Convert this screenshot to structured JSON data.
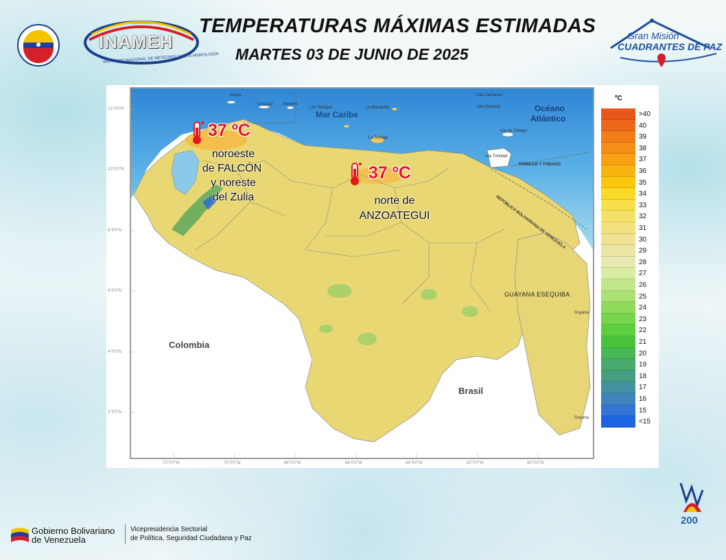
{
  "header": {
    "title": "TEMPERATURAS MÁXIMAS ESTIMADAS",
    "subtitle": "MARTES 03 DE JUNIO DE 2025"
  },
  "logos": {
    "inameh": "INAMEH",
    "inameh_sub": "INSTITUTO NACIONAL DE METEOROLOGÍA E HIDROLOGÍA",
    "gran_mision": "Gran Misión",
    "cuadrantes": "CUADRANTES DE PAZ",
    "bicentenario": "200"
  },
  "map": {
    "places": {
      "aruba": "Aruba",
      "curazao": "Curazao",
      "bonaire": "Bonaire",
      "los_testigos": "Los Testigos",
      "la_blanquilla": "La Blanquilla",
      "la_tortuga": "La Tortuga",
      "carriacou": "Isla Carriacou",
      "granada": "Isla Granada",
      "tobago": "Isla de Tobago",
      "trinidad": "Isla Trinidad",
      "mar_caribe": "Mar Caribe",
      "oceano": "Océano",
      "atlantico": "Atlántico",
      "trinidad_tobago": "TRINIDAD Y TOBAGO",
      "rep_bolivariana": "REPÚBLICA BOLIVARIANA DE VENEZUELA",
      "colombia": "Colombia",
      "brasil": "Brasil",
      "guayana_esequiba": "GUAYANA ESEQUIBA",
      "guyana": "Guyana",
      "guyana2": "Guyana"
    },
    "lat_labels": [
      "12°0'0\"N",
      "10°0'0\"N",
      "8°0'0\"N",
      "6°0'0\"N",
      "4°0'0\"N",
      "2°0'0\"N"
    ],
    "lon_labels": [
      "72°0'0\"W",
      "70°0'0\"W",
      "68°0'0\"W",
      "66°0'0\"W",
      "64°0'0\"W",
      "62°0'0\"W",
      "60°0'0\"W"
    ]
  },
  "annotations": [
    {
      "temp": "37 ºC",
      "line1": "noroeste",
      "line2": "de FALCÓN",
      "line3": "y noreste",
      "line4": "del Zulia"
    },
    {
      "temp": "37 ºC",
      "line1": "norte de",
      "line2": "ANZOATEGUI"
    }
  ],
  "legend": {
    "unit": "ºC",
    "entries": [
      {
        "label": ">40",
        "color": "#e8571c"
      },
      {
        "label": "40",
        "color": "#ee6a1a"
      },
      {
        "label": "39",
        "color": "#f27c18"
      },
      {
        "label": "38",
        "color": "#f58e16"
      },
      {
        "label": "37",
        "color": "#f7a013"
      },
      {
        "label": "36",
        "color": "#f8b510"
      },
      {
        "label": "35",
        "color": "#fac80c"
      },
      {
        "label": "34",
        "color": "#fad928"
      },
      {
        "label": "33",
        "color": "#f9e04a"
      },
      {
        "label": "32",
        "color": "#f6e168"
      },
      {
        "label": "31",
        "color": "#f3e27f"
      },
      {
        "label": "30",
        "color": "#efe393"
      },
      {
        "label": "29",
        "color": "#ebe6a4"
      },
      {
        "label": "28",
        "color": "#e8eab2"
      },
      {
        "label": "27",
        "color": "#d8eca2"
      },
      {
        "label": "26",
        "color": "#c2e78a"
      },
      {
        "label": "25",
        "color": "#a9e172"
      },
      {
        "label": "24",
        "color": "#8fdb5c"
      },
      {
        "label": "23",
        "color": "#75d54b"
      },
      {
        "label": "22",
        "color": "#5ccf3e"
      },
      {
        "label": "21",
        "color": "#48c43b"
      },
      {
        "label": "20",
        "color": "#46b855"
      },
      {
        "label": "19",
        "color": "#46ab6c"
      },
      {
        "label": "18",
        "color": "#459e82"
      },
      {
        "label": "17",
        "color": "#4491a0"
      },
      {
        "label": "16",
        "color": "#3f84bd"
      },
      {
        "label": "15",
        "color": "#3374d6"
      },
      {
        "label": "<15",
        "color": "#1c64e0"
      }
    ]
  },
  "footer": {
    "gob1": "Gobierno Bolivariano",
    "gob2": "de Venezuela",
    "vice1": "Vicepresidencia Sectorial",
    "vice2": "de Política, Seguridad Ciudadana y Paz"
  }
}
